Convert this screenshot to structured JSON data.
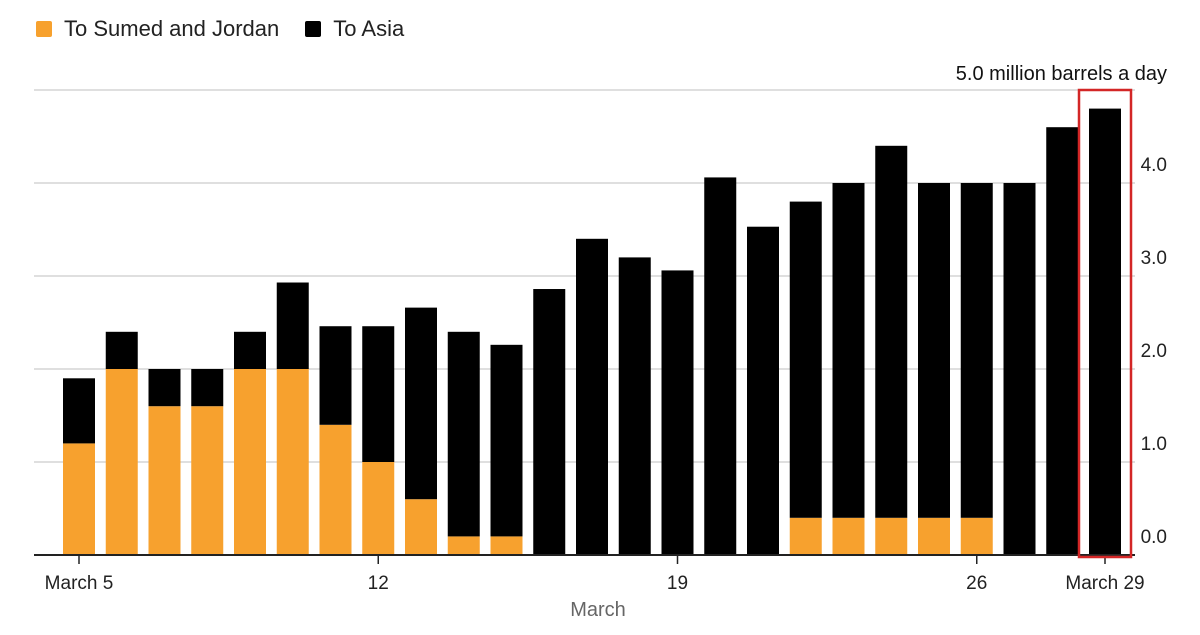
{
  "chart_data": {
    "type": "bar",
    "stacked": true,
    "title": "",
    "xlabel": "March",
    "ylabel": "",
    "unit_label": "5.0 million barrels a day",
    "ylim": [
      0,
      5
    ],
    "y_ticks": [
      "0.0",
      "1.0",
      "2.0",
      "3.0",
      "4.0"
    ],
    "y_tick_values": [
      0,
      1,
      2,
      3,
      4
    ],
    "x_tick_labels": [
      {
        "index": 0,
        "label": "March 5"
      },
      {
        "index": 7,
        "label": "12"
      },
      {
        "index": 14,
        "label": "19"
      },
      {
        "index": 21,
        "label": "26"
      },
      {
        "index": 24,
        "label": "March 29"
      }
    ],
    "categories": [
      "Mar 5",
      "Mar 6",
      "Mar 7",
      "Mar 8",
      "Mar 9",
      "Mar 10",
      "Mar 11",
      "Mar 12",
      "Mar 13",
      "Mar 14",
      "Mar 15",
      "Mar 16",
      "Mar 17",
      "Mar 18",
      "Mar 19",
      "Mar 20",
      "Mar 21",
      "Mar 22",
      "Mar 23",
      "Mar 24",
      "Mar 25",
      "Mar 26",
      "Mar 27",
      "Mar 28",
      "Mar 29"
    ],
    "series": [
      {
        "name": "To Sumed and Jordan",
        "color": "#F7A12E",
        "values": [
          1.2,
          2.0,
          1.6,
          1.6,
          2.0,
          2.0,
          1.4,
          1.0,
          0.6,
          0.2,
          0.2,
          0,
          0,
          0,
          0,
          0,
          0,
          0.4,
          0.4,
          0.4,
          0.4,
          0.4,
          0,
          0,
          0
        ]
      },
      {
        "name": "To Asia",
        "color": "#000000",
        "values": [
          0.7,
          0.4,
          0.4,
          0.4,
          0.4,
          0.93,
          1.06,
          1.46,
          2.06,
          2.2,
          2.06,
          2.86,
          3.4,
          3.2,
          3.06,
          4.06,
          3.53,
          3.4,
          3.6,
          4.0,
          3.6,
          3.6,
          4.0,
          4.6,
          4.8
        ]
      }
    ],
    "highlight_index": 24,
    "highlight_color": "#D32626",
    "grid": true,
    "legend_position": "top-left"
  }
}
